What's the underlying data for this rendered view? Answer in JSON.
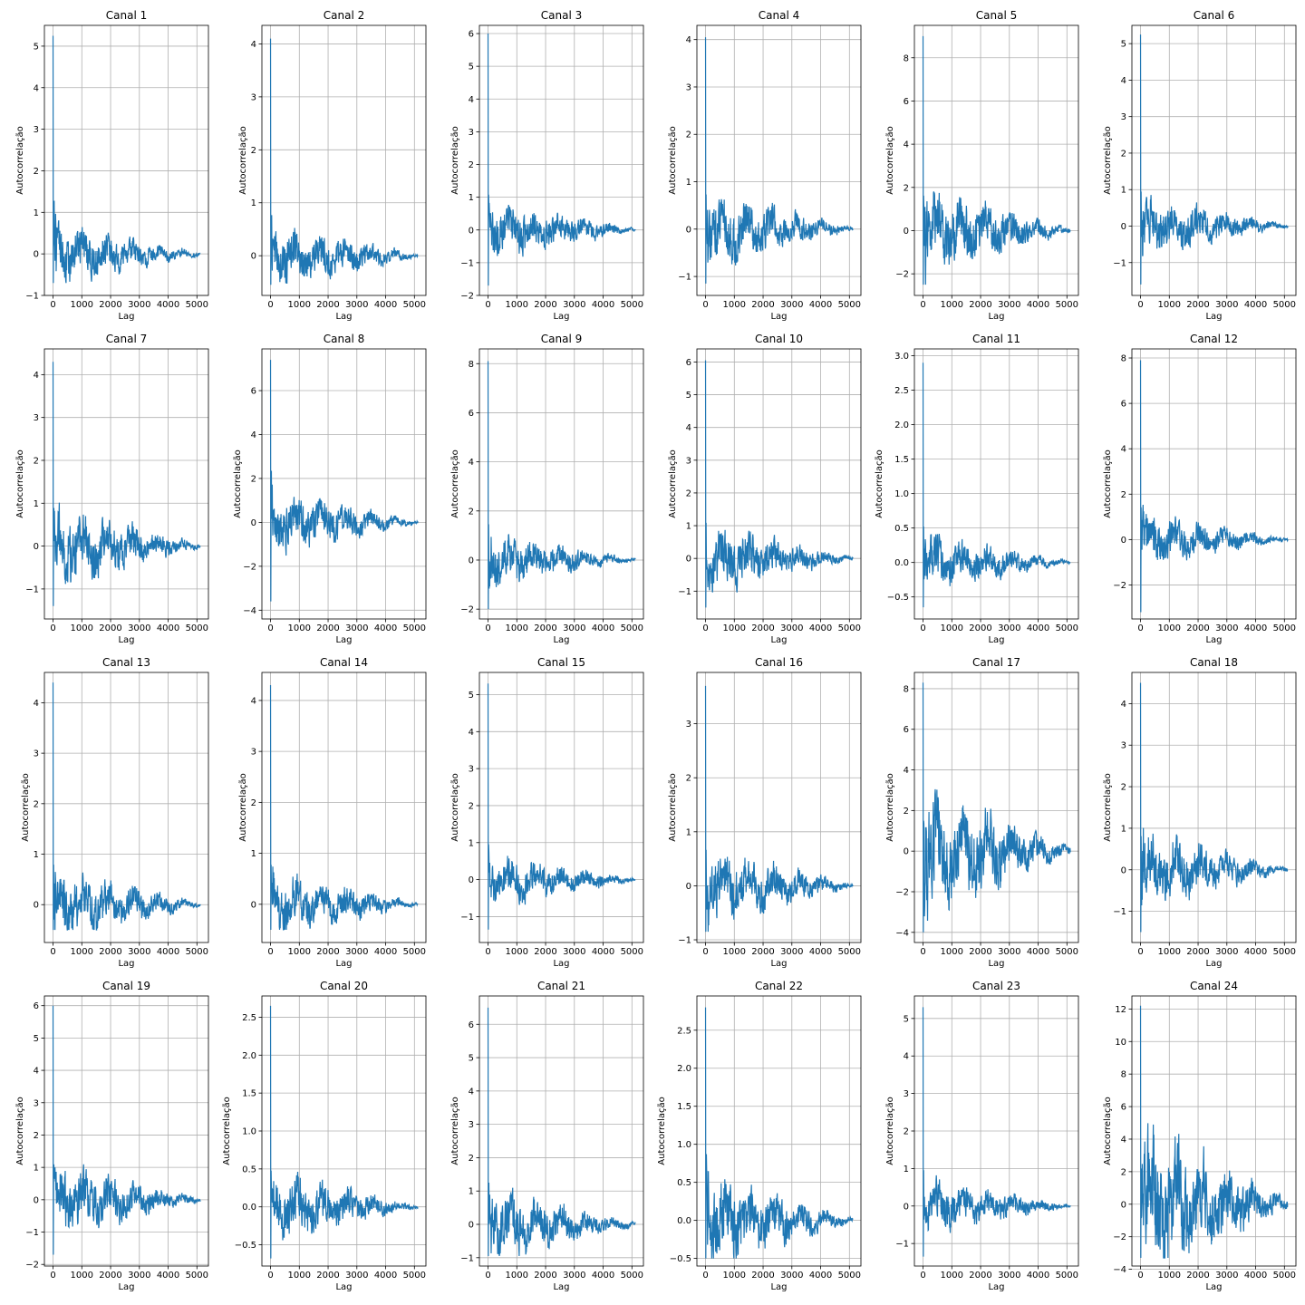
{
  "figure": {
    "x_label": "Lag",
    "y_label": "Autocorrelação",
    "line_color": "#1f77b4",
    "grid": true,
    "x_ticks": [
      0,
      1000,
      2000,
      3000,
      4000,
      5000
    ],
    "x_lim": [
      -300,
      5400
    ]
  },
  "chart_data": [
    {
      "type": "line",
      "title": "Canal 1",
      "ylim": [
        -1.0,
        5.5
      ],
      "yticks": [
        -1,
        0,
        1,
        2,
        3,
        4,
        5
      ],
      "peak": 5.25,
      "min": -0.7,
      "amp": 0.35,
      "dip": -0.7,
      "seed": 1
    },
    {
      "type": "line",
      "title": "Canal 2",
      "ylim": [
        -0.75,
        4.35
      ],
      "yticks": [
        0,
        1,
        2,
        3,
        4
      ],
      "peak": 4.1,
      "min": -0.55,
      "amp": 0.3,
      "dip": -0.55,
      "seed": 2
    },
    {
      "type": "line",
      "title": "Canal 3",
      "ylim": [
        -2.0,
        6.25
      ],
      "yticks": [
        -2,
        -1,
        0,
        1,
        2,
        3,
        4,
        5,
        6
      ],
      "peak": 6.0,
      "min": -1.7,
      "amp": 0.45,
      "dip": -1.7,
      "seed": 3
    },
    {
      "type": "line",
      "title": "Canal 4",
      "ylim": [
        -1.4,
        4.3
      ],
      "yticks": [
        -1,
        0,
        1,
        2,
        3,
        4
      ],
      "peak": 4.05,
      "min": -1.15,
      "amp": 0.4,
      "dip": -1.15,
      "seed": 4
    },
    {
      "type": "line",
      "title": "Canal 5",
      "ylim": [
        -3.0,
        9.5
      ],
      "yticks": [
        -2,
        0,
        2,
        4,
        6,
        8
      ],
      "peak": 9.0,
      "min": -2.5,
      "amp": 1.0,
      "dip": -2.5,
      "seed": 5
    },
    {
      "type": "line",
      "title": "Canal 6",
      "ylim": [
        -1.9,
        5.5
      ],
      "yticks": [
        -1,
        0,
        1,
        2,
        3,
        4,
        5
      ],
      "peak": 5.25,
      "min": -1.6,
      "amp": 0.4,
      "dip": -1.6,
      "seed": 6
    },
    {
      "type": "line",
      "title": "Canal 7",
      "ylim": [
        -1.7,
        4.6
      ],
      "yticks": [
        -1,
        0,
        1,
        2,
        3,
        4
      ],
      "peak": 4.3,
      "min": -1.4,
      "amp": 0.45,
      "dip": -1.4,
      "seed": 7
    },
    {
      "type": "line",
      "title": "Canal 8",
      "ylim": [
        -4.4,
        7.9
      ],
      "yticks": [
        -4,
        -2,
        0,
        2,
        4,
        6
      ],
      "peak": 7.4,
      "min": -3.6,
      "amp": 0.7,
      "dip": -3.6,
      "seed": 8
    },
    {
      "type": "line",
      "title": "Canal 9",
      "ylim": [
        -2.4,
        8.6
      ],
      "yticks": [
        -2,
        0,
        2,
        4,
        6,
        8
      ],
      "peak": 8.1,
      "min": -2.0,
      "amp": 0.55,
      "dip": -2.0,
      "seed": 9
    },
    {
      "type": "line",
      "title": "Canal 10",
      "ylim": [
        -1.85,
        6.4
      ],
      "yticks": [
        -1,
        0,
        1,
        2,
        3,
        4,
        5,
        6
      ],
      "peak": 6.05,
      "min": -1.5,
      "amp": 0.5,
      "dip": -1.5,
      "seed": 10
    },
    {
      "type": "line",
      "title": "Canal 11",
      "ylim": [
        -0.82,
        3.1
      ],
      "yticks": [
        -0.5,
        0.0,
        0.5,
        1.0,
        1.5,
        2.0,
        2.5,
        3.0
      ],
      "peak": 2.9,
      "min": -0.65,
      "amp": 0.2,
      "dip": -0.65,
      "seed": 11
    },
    {
      "type": "line",
      "title": "Canal 12",
      "ylim": [
        -3.5,
        8.4
      ],
      "yticks": [
        -2,
        0,
        2,
        4,
        6,
        8
      ],
      "peak": 7.9,
      "min": -3.2,
      "amp": 0.55,
      "dip": -3.2,
      "seed": 12
    },
    {
      "type": "line",
      "title": "Canal 13",
      "ylim": [
        -0.75,
        4.6
      ],
      "yticks": [
        0,
        1,
        2,
        3,
        4
      ],
      "peak": 4.4,
      "min": -0.5,
      "amp": 0.35,
      "dip": -0.5,
      "seed": 13
    },
    {
      "type": "line",
      "title": "Canal 14",
      "ylim": [
        -0.75,
        4.55
      ],
      "yticks": [
        0,
        1,
        2,
        3,
        4
      ],
      "peak": 4.3,
      "min": -0.5,
      "amp": 0.3,
      "dip": -0.5,
      "seed": 14
    },
    {
      "type": "line",
      "title": "Canal 15",
      "ylim": [
        -1.7,
        5.6
      ],
      "yticks": [
        -1,
        0,
        1,
        2,
        3,
        4,
        5
      ],
      "peak": 5.3,
      "min": -1.35,
      "amp": 0.35,
      "dip": -1.35,
      "seed": 15
    },
    {
      "type": "line",
      "title": "Canal 16",
      "ylim": [
        -1.05,
        3.95
      ],
      "yticks": [
        -1,
        0,
        1,
        2,
        3
      ],
      "peak": 3.7,
      "min": -0.85,
      "amp": 0.35,
      "dip": -0.85,
      "seed": 16
    },
    {
      "type": "line",
      "title": "Canal 17",
      "ylim": [
        -4.5,
        8.8
      ],
      "yticks": [
        -4,
        -2,
        0,
        2,
        4,
        6,
        8
      ],
      "peak": 8.3,
      "min": -4.0,
      "amp": 1.6,
      "dip": -4.0,
      "seed": 17
    },
    {
      "type": "line",
      "title": "Canal 18",
      "ylim": [
        -1.75,
        4.75
      ],
      "yticks": [
        -1,
        0,
        1,
        2,
        3,
        4
      ],
      "peak": 4.5,
      "min": -1.5,
      "amp": 0.45,
      "dip": -1.5,
      "seed": 18
    },
    {
      "type": "line",
      "title": "Canal 19",
      "ylim": [
        -2.05,
        6.3
      ],
      "yticks": [
        -2,
        -1,
        0,
        1,
        2,
        3,
        4,
        5,
        6
      ],
      "peak": 6.0,
      "min": -1.7,
      "amp": 0.55,
      "dip": -1.7,
      "seed": 19
    },
    {
      "type": "line",
      "title": "Canal 20",
      "ylim": [
        -0.78,
        2.78
      ],
      "yticks": [
        -0.5,
        0.0,
        0.5,
        1.0,
        1.5,
        2.0,
        2.5
      ],
      "peak": 2.65,
      "min": -0.68,
      "amp": 0.22,
      "dip": -0.68,
      "seed": 20
    },
    {
      "type": "line",
      "title": "Canal 21",
      "ylim": [
        -1.25,
        6.85
      ],
      "yticks": [
        -1,
        0,
        1,
        2,
        3,
        4,
        5,
        6
      ],
      "peak": 6.5,
      "min": -0.95,
      "amp": 0.55,
      "dip": -0.95,
      "seed": 21
    },
    {
      "type": "line",
      "title": "Canal 22",
      "ylim": [
        -0.6,
        2.95
      ],
      "yticks": [
        -0.5,
        0.0,
        0.5,
        1.0,
        1.5,
        2.0,
        2.5
      ],
      "peak": 2.8,
      "min": -0.5,
      "amp": 0.3,
      "dip": -0.5,
      "seed": 22
    },
    {
      "type": "line",
      "title": "Canal 23",
      "ylim": [
        -1.6,
        5.6
      ],
      "yticks": [
        -1,
        0,
        1,
        2,
        3,
        4,
        5
      ],
      "peak": 5.3,
      "min": -1.35,
      "amp": 0.35,
      "dip": -1.35,
      "seed": 23
    },
    {
      "type": "line",
      "title": "Canal 24",
      "ylim": [
        -3.8,
        12.8
      ],
      "yticks": [
        -4,
        -2,
        0,
        2,
        4,
        6,
        8,
        10,
        12
      ],
      "peak": 12.2,
      "min": -3.3,
      "amp": 2.4,
      "dip": -3.3,
      "seed": 24
    }
  ]
}
